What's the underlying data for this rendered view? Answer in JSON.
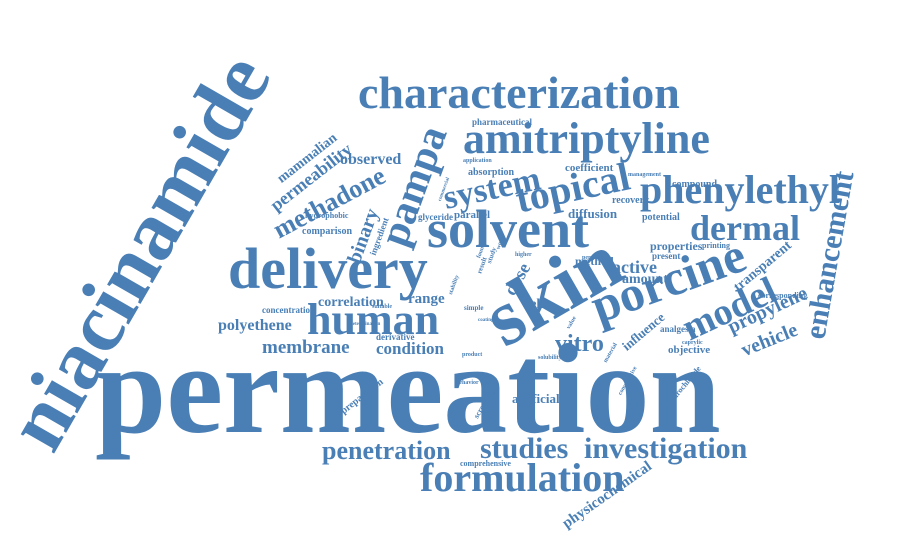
{
  "palette": {
    "text": "#4a7fb5",
    "background": "#ffffff"
  },
  "words": [
    {
      "id": "permeation",
      "text": "permeation"
    },
    {
      "id": "niacinamide",
      "text": "niacinamide"
    },
    {
      "id": "skin",
      "text": "skin"
    },
    {
      "id": "delivery",
      "text": "delivery"
    },
    {
      "id": "characterization",
      "text": "characterization"
    },
    {
      "id": "amitriptyline",
      "text": "amitriptyline"
    },
    {
      "id": "solvent",
      "text": "solvent"
    },
    {
      "id": "porcine",
      "text": "porcine"
    },
    {
      "id": "human",
      "text": "human"
    },
    {
      "id": "pampa",
      "text": "pampa"
    },
    {
      "id": "formulation",
      "text": "formulation"
    },
    {
      "id": "studies",
      "text": "studies"
    },
    {
      "id": "investigation",
      "text": "investigation"
    },
    {
      "id": "penetration",
      "text": "penetration"
    },
    {
      "id": "topical",
      "text": "topical"
    },
    {
      "id": "system",
      "text": "system"
    },
    {
      "id": "phenylethyl",
      "text": "phenylethyl"
    },
    {
      "id": "dermal",
      "text": "dermal"
    },
    {
      "id": "model",
      "text": "model"
    },
    {
      "id": "enhancement",
      "text": "enhancement"
    },
    {
      "id": "methadone",
      "text": "methadone"
    },
    {
      "id": "binary",
      "text": "binary"
    },
    {
      "id": "permeability",
      "text": "permeability"
    },
    {
      "id": "mammalian",
      "text": "mammalian"
    },
    {
      "id": "observed",
      "text": "observed"
    },
    {
      "id": "pharmaceutical",
      "text": "pharmaceutical"
    },
    {
      "id": "membrane",
      "text": "membrane"
    },
    {
      "id": "condition",
      "text": "condition"
    },
    {
      "id": "polyethene",
      "text": "polyethene"
    },
    {
      "id": "correlation",
      "text": "correlation"
    },
    {
      "id": "range",
      "text": "range"
    },
    {
      "id": "vitro",
      "text": "vitro"
    },
    {
      "id": "propylene",
      "text": "propylene"
    },
    {
      "id": "vehicle",
      "text": "vehicle"
    },
    {
      "id": "transparent",
      "text": "transparent"
    },
    {
      "id": "active",
      "text": "active"
    },
    {
      "id": "amount",
      "text": "amount"
    },
    {
      "id": "properties",
      "text": "properties"
    },
    {
      "id": "influence",
      "text": "influence"
    },
    {
      "id": "dose",
      "text": "dose"
    },
    {
      "id": "cell",
      "text": "cell"
    },
    {
      "id": "method",
      "text": "method"
    },
    {
      "id": "diffusion",
      "text": "diffusion"
    },
    {
      "id": "parallel",
      "text": "parallel"
    },
    {
      "id": "recovery",
      "text": "recovery"
    },
    {
      "id": "coefficient",
      "text": "coefficient"
    },
    {
      "id": "compound",
      "text": "compound"
    },
    {
      "id": "potential",
      "text": "potential"
    },
    {
      "id": "absorption",
      "text": "absorption"
    },
    {
      "id": "glyceride",
      "text": "glyceride"
    },
    {
      "id": "comparison",
      "text": "comparison"
    },
    {
      "id": "hydrophobic",
      "text": "hydrophobic"
    },
    {
      "id": "ingredient",
      "text": "ingredient"
    },
    {
      "id": "concentration",
      "text": "concentration"
    },
    {
      "id": "derivative",
      "text": "derivative"
    },
    {
      "id": "artificial",
      "text": "artificial"
    },
    {
      "id": "objective",
      "text": "objective"
    },
    {
      "id": "analgesia",
      "text": "analgesia"
    },
    {
      "id": "preparation",
      "text": "preparation"
    },
    {
      "id": "physicochemical",
      "text": "physicochemical"
    },
    {
      "id": "comprehensive",
      "text": "comprehensive"
    },
    {
      "id": "hydrochloride",
      "text": "hydrochloride"
    },
    {
      "id": "screening",
      "text": "screening"
    },
    {
      "id": "corresponding",
      "text": "corresponding"
    },
    {
      "id": "application",
      "text": "application"
    },
    {
      "id": "management",
      "text": "management"
    },
    {
      "id": "printing",
      "text": "printing"
    },
    {
      "id": "personal",
      "text": "personal"
    },
    {
      "id": "present",
      "text": "present"
    },
    {
      "id": "higher",
      "text": "higher"
    },
    {
      "id": "material",
      "text": "material"
    },
    {
      "id": "simple",
      "text": "simple"
    },
    {
      "id": "result",
      "text": "result"
    },
    {
      "id": "study",
      "text": "study"
    },
    {
      "id": "found",
      "text": "found"
    },
    {
      "id": "work",
      "text": "work"
    },
    {
      "id": "stability",
      "text": "stability"
    },
    {
      "id": "solubility",
      "text": "solubility"
    },
    {
      "id": "value",
      "text": "value"
    },
    {
      "id": "product",
      "text": "product"
    },
    {
      "id": "caprylic",
      "text": "caprylic"
    },
    {
      "id": "suitable",
      "text": "suitable"
    },
    {
      "id": "behavior",
      "text": "behavior"
    },
    {
      "id": "solution",
      "text": "solution"
    },
    {
      "id": "comparative",
      "text": "comparative"
    },
    {
      "id": "commercial",
      "text": "commercial"
    },
    {
      "id": "determination",
      "text": "determination"
    },
    {
      "id": "coating",
      "text": "coating"
    }
  ]
}
